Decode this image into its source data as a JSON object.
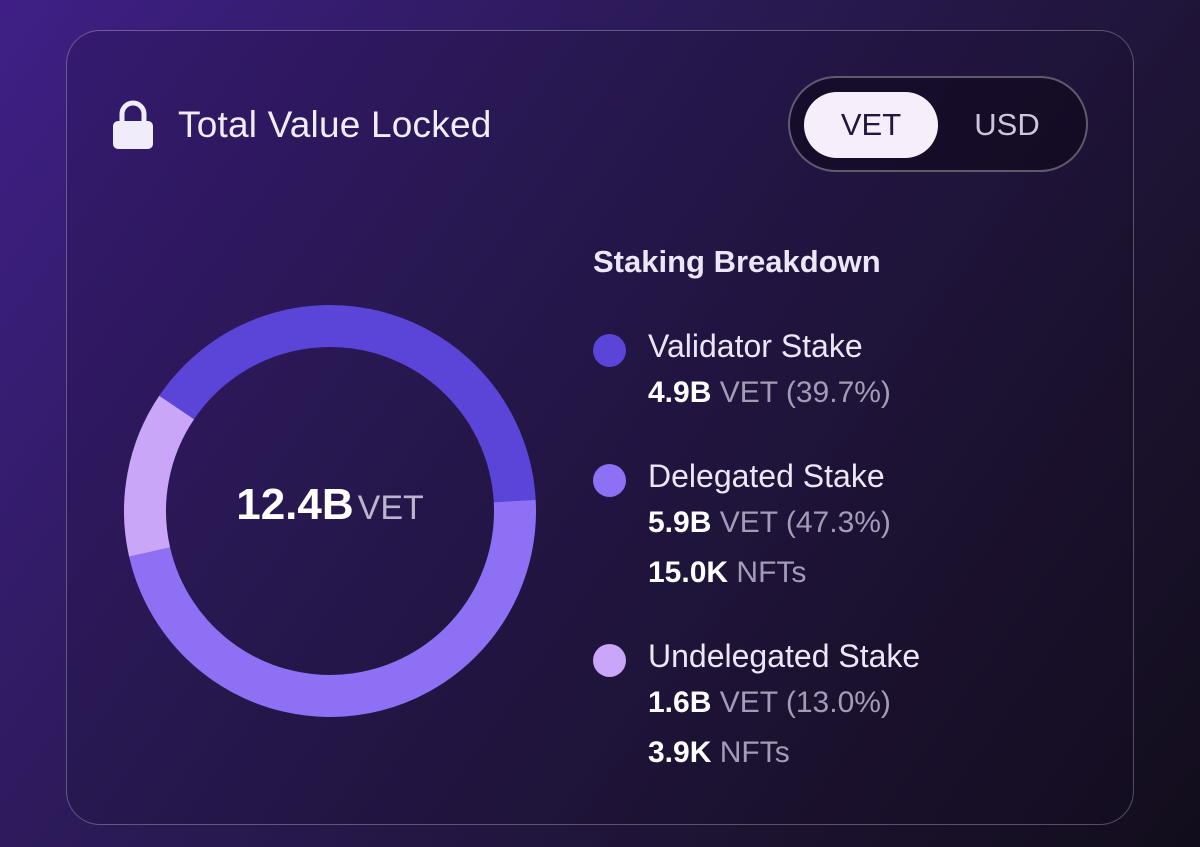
{
  "header": {
    "title": "Total Value Locked",
    "icon": "lock-icon"
  },
  "currency_toggle": {
    "options": [
      "VET",
      "USD"
    ],
    "selected": "VET"
  },
  "total": {
    "value": "12.4B",
    "unit": "VET"
  },
  "breakdown": {
    "title": "Staking Breakdown",
    "items": [
      {
        "name": "Validator Stake",
        "amount": "4.9B",
        "unit": "VET",
        "percent_text": "(39.7%)",
        "color": "#5b45d8"
      },
      {
        "name": "Delegated Stake",
        "amount": "5.9B",
        "unit": "VET",
        "percent_text": "(47.3%)",
        "nft_count": "15.0K",
        "nft_unit": "NFTs",
        "color": "#8d70f3"
      },
      {
        "name": "Undelegated Stake",
        "amount": "1.6B",
        "unit": "VET",
        "percent_text": "(13.0%)",
        "nft_count": "3.9K",
        "nft_unit": "NFTs",
        "color": "#c9a6f7"
      }
    ]
  },
  "chart_data": {
    "type": "pie",
    "categories": [
      "Validator Stake",
      "Delegated Stake",
      "Undelegated Stake"
    ],
    "values": [
      39.7,
      47.3,
      13.0
    ],
    "colors": [
      "#5b45d8",
      "#8d70f3",
      "#c9a6f7"
    ],
    "center_text": "12.4B VET"
  }
}
